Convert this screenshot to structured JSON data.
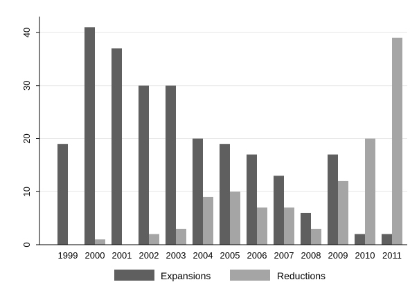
{
  "chart_data": {
    "type": "bar",
    "categories": [
      "1999",
      "2000",
      "2001",
      "2002",
      "2003",
      "2004",
      "2005",
      "2006",
      "2007",
      "2008",
      "2009",
      "2010",
      "2011"
    ],
    "series": [
      {
        "name": "Expansions",
        "color": "#5f5f5f",
        "values": [
          19,
          41,
          37,
          30,
          30,
          20,
          19,
          17,
          13,
          6,
          17,
          2,
          2
        ]
      },
      {
        "name": "Reductions",
        "color": "#a5a5a5",
        "values": [
          0,
          1,
          0,
          2,
          3,
          9,
          10,
          7,
          7,
          3,
          12,
          20,
          39
        ]
      }
    ],
    "title": "",
    "xlabel": "",
    "ylabel": "",
    "ylim": [
      0,
      43
    ],
    "yticks": [
      0,
      10,
      20,
      30,
      40
    ],
    "grid": true,
    "legend_position": "bottom"
  }
}
